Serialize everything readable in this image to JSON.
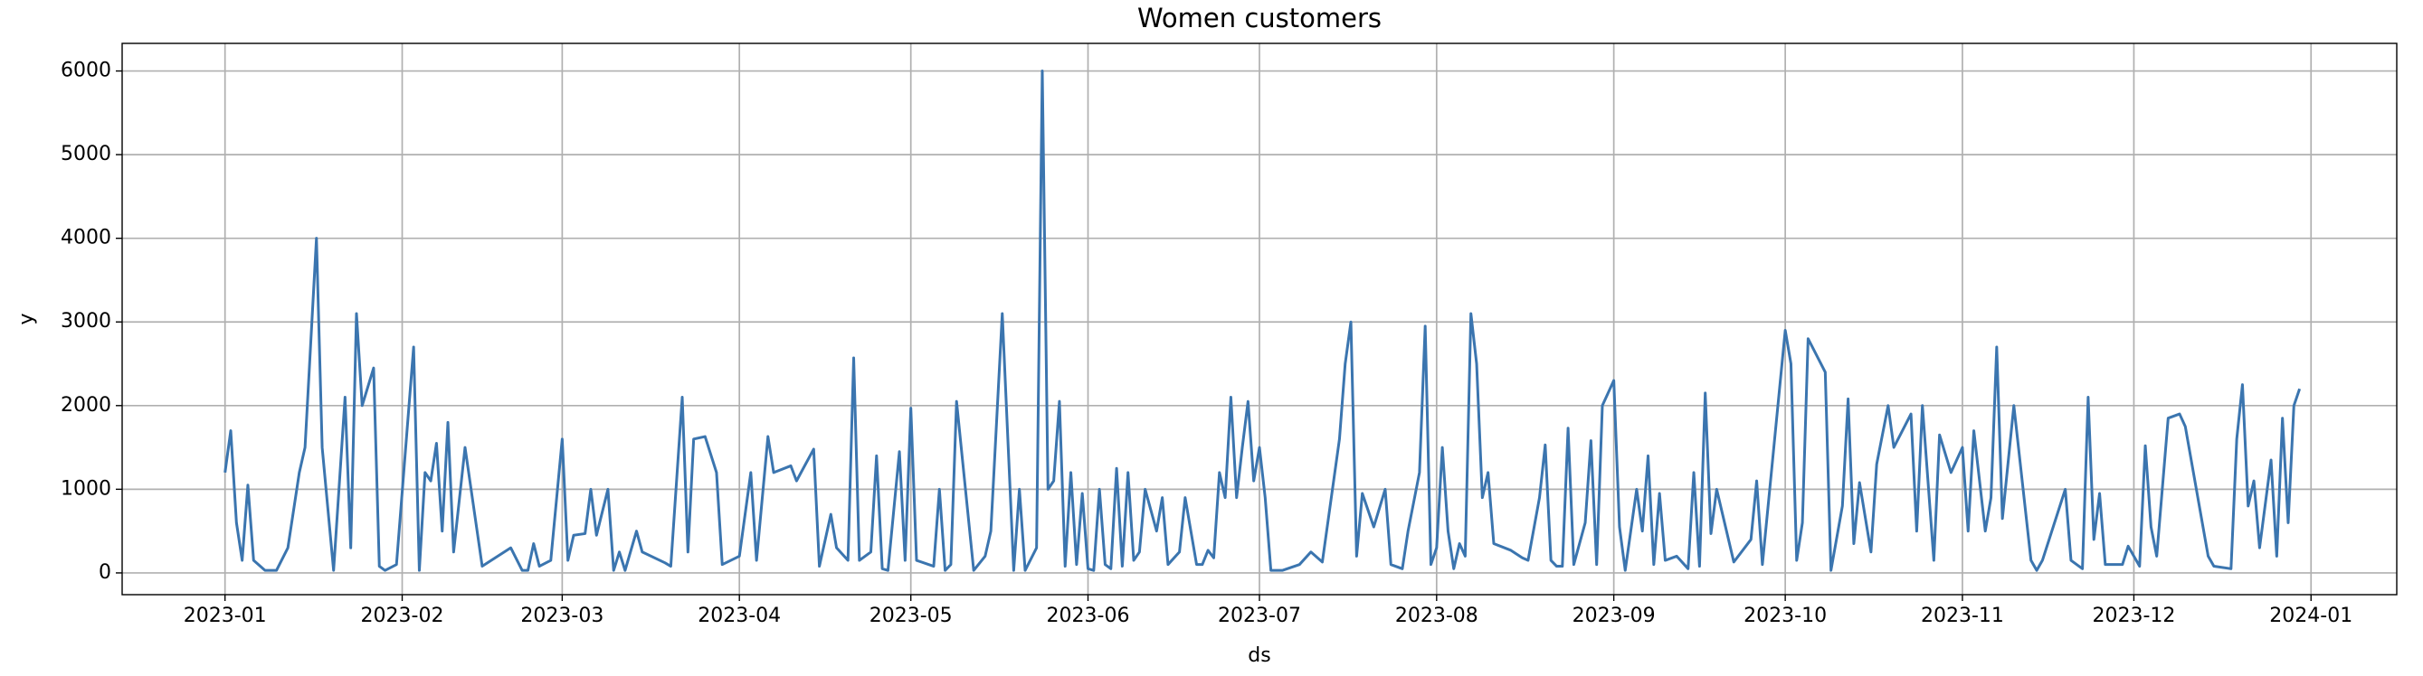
{
  "chart_data": {
    "type": "line",
    "title": "Women customers",
    "x_label": "ds",
    "y_label": "y",
    "color": "#3b75af",
    "grid": true,
    "xlim": [
      "2022-12-14",
      "2024-01-16"
    ],
    "ylim": [
      -260,
      6330
    ],
    "xticks": [
      {
        "value": "2023-01-01",
        "label": "2023-01"
      },
      {
        "value": "2023-02-01",
        "label": "2023-02"
      },
      {
        "value": "2023-03-01",
        "label": "2023-03"
      },
      {
        "value": "2023-04-01",
        "label": "2023-04"
      },
      {
        "value": "2023-05-01",
        "label": "2023-05"
      },
      {
        "value": "2023-06-01",
        "label": "2023-06"
      },
      {
        "value": "2023-07-01",
        "label": "2023-07"
      },
      {
        "value": "2023-08-01",
        "label": "2023-08"
      },
      {
        "value": "2023-09-01",
        "label": "2023-09"
      },
      {
        "value": "2023-10-01",
        "label": "2023-10"
      },
      {
        "value": "2023-11-01",
        "label": "2023-11"
      },
      {
        "value": "2023-12-01",
        "label": "2023-12"
      },
      {
        "value": "2024-01-01",
        "label": "2024-01"
      }
    ],
    "yticks": [
      0,
      1000,
      2000,
      3000,
      4000,
      5000,
      6000
    ],
    "x": [
      "2023-01-01",
      "2023-01-02",
      "2023-01-03",
      "2023-01-04",
      "2023-01-05",
      "2023-01-06",
      "2023-01-08",
      "2023-01-10",
      "2023-01-12",
      "2023-01-14",
      "2023-01-15",
      "2023-01-17",
      "2023-01-18",
      "2023-01-20",
      "2023-01-22",
      "2023-01-23",
      "2023-01-24",
      "2023-01-25",
      "2023-01-27",
      "2023-01-28",
      "2023-01-29",
      "2023-01-31",
      "2023-02-03",
      "2023-02-04",
      "2023-02-05",
      "2023-02-06",
      "2023-02-07",
      "2023-02-08",
      "2023-02-09",
      "2023-02-10",
      "2023-02-12",
      "2023-02-15",
      "2023-02-20",
      "2023-02-22",
      "2023-02-23",
      "2023-02-24",
      "2023-02-25",
      "2023-02-27",
      "2023-03-01",
      "2023-03-02",
      "2023-03-03",
      "2023-03-05",
      "2023-03-06",
      "2023-03-07",
      "2023-03-09",
      "2023-03-10",
      "2023-03-11",
      "2023-03-12",
      "2023-03-14",
      "2023-03-15",
      "2023-03-19",
      "2023-03-20",
      "2023-03-22",
      "2023-03-23",
      "2023-03-24",
      "2023-03-26",
      "2023-03-28",
      "2023-03-29",
      "2023-04-01",
      "2023-04-03",
      "2023-04-04",
      "2023-04-06",
      "2023-04-07",
      "2023-04-10",
      "2023-04-11",
      "2023-04-14",
      "2023-04-15",
      "2023-04-17",
      "2023-04-18",
      "2023-04-20",
      "2023-04-21",
      "2023-04-22",
      "2023-04-24",
      "2023-04-25",
      "2023-04-26",
      "2023-04-27",
      "2023-04-29",
      "2023-04-30",
      "2023-05-01",
      "2023-05-02",
      "2023-05-05",
      "2023-05-06",
      "2023-05-07",
      "2023-05-08",
      "2023-05-09",
      "2023-05-12",
      "2023-05-14",
      "2023-05-15",
      "2023-05-17",
      "2023-05-19",
      "2023-05-20",
      "2023-05-21",
      "2023-05-23",
      "2023-05-24",
      "2023-05-25",
      "2023-05-26",
      "2023-05-27",
      "2023-05-28",
      "2023-05-29",
      "2023-05-30",
      "2023-05-31",
      "2023-06-01",
      "2023-06-02",
      "2023-06-03",
      "2023-06-04",
      "2023-06-05",
      "2023-06-06",
      "2023-06-07",
      "2023-06-08",
      "2023-06-09",
      "2023-06-10",
      "2023-06-11",
      "2023-06-13",
      "2023-06-14",
      "2023-06-15",
      "2023-06-17",
      "2023-06-18",
      "2023-06-20",
      "2023-06-21",
      "2023-06-22",
      "2023-06-23",
      "2023-06-24",
      "2023-06-25",
      "2023-06-26",
      "2023-06-27",
      "2023-06-28",
      "2023-06-29",
      "2023-06-30",
      "2023-07-01",
      "2023-07-02",
      "2023-07-03",
      "2023-07-05",
      "2023-07-08",
      "2023-07-10",
      "2023-07-12",
      "2023-07-15",
      "2023-07-16",
      "2023-07-17",
      "2023-07-18",
      "2023-07-19",
      "2023-07-21",
      "2023-07-23",
      "2023-07-24",
      "2023-07-26",
      "2023-07-27",
      "2023-07-29",
      "2023-07-30",
      "2023-07-31",
      "2023-08-01",
      "2023-08-02",
      "2023-08-03",
      "2023-08-04",
      "2023-08-05",
      "2023-08-06",
      "2023-08-07",
      "2023-08-08",
      "2023-08-09",
      "2023-08-10",
      "2023-08-11",
      "2023-08-14",
      "2023-08-16",
      "2023-08-17",
      "2023-08-19",
      "2023-08-20",
      "2023-08-21",
      "2023-08-22",
      "2023-08-23",
      "2023-08-24",
      "2023-08-25",
      "2023-08-27",
      "2023-08-28",
      "2023-08-29",
      "2023-08-30",
      "2023-09-01",
      "2023-09-02",
      "2023-09-03",
      "2023-09-05",
      "2023-09-06",
      "2023-09-07",
      "2023-09-08",
      "2023-09-09",
      "2023-09-10",
      "2023-09-12",
      "2023-09-14",
      "2023-09-15",
      "2023-09-16",
      "2023-09-17",
      "2023-09-18",
      "2023-09-19",
      "2023-09-22",
      "2023-09-25",
      "2023-09-26",
      "2023-09-27",
      "2023-10-01",
      "2023-10-02",
      "2023-10-03",
      "2023-10-04",
      "2023-10-05",
      "2023-10-08",
      "2023-10-09",
      "2023-10-11",
      "2023-10-12",
      "2023-10-13",
      "2023-10-14",
      "2023-10-16",
      "2023-10-17",
      "2023-10-19",
      "2023-10-20",
      "2023-10-23",
      "2023-10-24",
      "2023-10-25",
      "2023-10-27",
      "2023-10-28",
      "2023-10-30",
      "2023-11-01",
      "2023-11-02",
      "2023-11-03",
      "2023-11-05",
      "2023-11-06",
      "2023-11-07",
      "2023-11-08",
      "2023-11-10",
      "2023-11-13",
      "2023-11-14",
      "2023-11-15",
      "2023-11-19",
      "2023-11-20",
      "2023-11-22",
      "2023-11-23",
      "2023-11-24",
      "2023-11-25",
      "2023-11-26",
      "2023-11-29",
      "2023-11-30",
      "2023-12-02",
      "2023-12-03",
      "2023-12-04",
      "2023-12-05",
      "2023-12-07",
      "2023-12-09",
      "2023-12-10",
      "2023-12-14",
      "2023-12-15",
      "2023-12-18",
      "2023-12-19",
      "2023-12-20",
      "2023-12-21",
      "2023-12-22",
      "2023-12-23",
      "2023-12-25",
      "2023-12-26",
      "2023-12-27",
      "2023-12-28",
      "2023-12-29",
      "2023-12-30"
    ],
    "values": [
      1200,
      1700,
      600,
      150,
      1050,
      150,
      30,
      30,
      300,
      1200,
      1500,
      4000,
      1500,
      30,
      2100,
      300,
      3100,
      2000,
      2450,
      80,
      30,
      100,
      2700,
      30,
      1200,
      1100,
      1550,
      500,
      1800,
      250,
      1500,
      80,
      300,
      30,
      30,
      350,
      80,
      150,
      1600,
      150,
      450,
      470,
      1000,
      450,
      1000,
      30,
      250,
      30,
      500,
      250,
      120,
      80,
      2100,
      250,
      1600,
      1630,
      1200,
      100,
      200,
      1200,
      150,
      1630,
      1200,
      1280,
      1100,
      1480,
      80,
      700,
      300,
      150,
      2570,
      150,
      250,
      1400,
      50,
      30,
      1450,
      150,
      1970,
      150,
      80,
      1000,
      30,
      100,
      2050,
      30,
      200,
      500,
      3100,
      30,
      1000,
      30,
      300,
      6000,
      1000,
      1100,
      2050,
      80,
      1200,
      100,
      950,
      50,
      30,
      1000,
      100,
      50,
      1250,
      80,
      1200,
      150,
      250,
      1000,
      500,
      900,
      100,
      250,
      900,
      100,
      100,
      270,
      180,
      1200,
      900,
      2100,
      900,
      1500,
      2050,
      1100,
      1500,
      900,
      30,
      30,
      100,
      250,
      130,
      1600,
      2500,
      3000,
      200,
      950,
      550,
      1000,
      100,
      50,
      500,
      1200,
      2950,
      100,
      300,
      1500,
      500,
      50,
      350,
      200,
      3100,
      2500,
      900,
      1200,
      350,
      270,
      180,
      150,
      900,
      1530,
      150,
      80,
      80,
      1730,
      100,
      600,
      1580,
      100,
      2000,
      2300,
      550,
      30,
      1000,
      500,
      1400,
      100,
      950,
      150,
      200,
      50,
      1200,
      80,
      2150,
      470,
      1000,
      130,
      400,
      1100,
      100,
      2900,
      2500,
      150,
      600,
      2800,
      2400,
      30,
      800,
      2080,
      350,
      1080,
      250,
      1300,
      2000,
      1500,
      1900,
      500,
      2000,
      150,
      1650,
      1200,
      1500,
      500,
      1700,
      500,
      900,
      2700,
      650,
      2000,
      150,
      30,
      150,
      1000,
      150,
      50,
      2100,
      400,
      950,
      100,
      100,
      320,
      80,
      1520,
      550,
      200,
      1850,
      1900,
      1750,
      200,
      80,
      50,
      1600,
      2250,
      800,
      1100,
      300,
      1350,
      200,
      1850,
      600,
      2000,
      2200
    ]
  }
}
